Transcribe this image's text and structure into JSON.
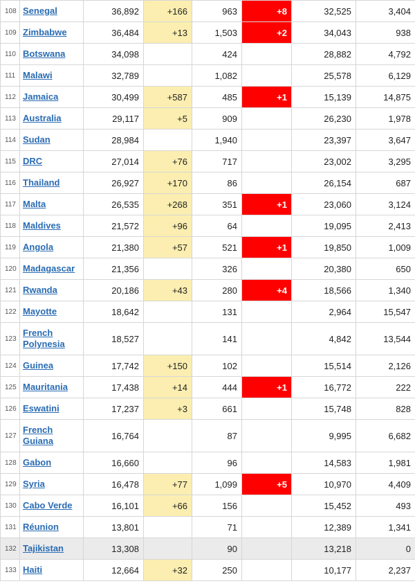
{
  "rows": [
    {
      "rank": "108",
      "country": "Senegal",
      "cases": "36,892",
      "new_cases": "+166",
      "deaths": "963",
      "new_deaths": "+8",
      "recovered": "32,525",
      "active": "3,404"
    },
    {
      "rank": "109",
      "country": "Zimbabwe",
      "cases": "36,484",
      "new_cases": "+13",
      "deaths": "1,503",
      "new_deaths": "+2",
      "recovered": "34,043",
      "active": "938"
    },
    {
      "rank": "110",
      "country": "Botswana",
      "cases": "34,098",
      "new_cases": "",
      "deaths": "424",
      "new_deaths": "",
      "recovered": "28,882",
      "active": "4,792"
    },
    {
      "rank": "111",
      "country": "Malawi",
      "cases": "32,789",
      "new_cases": "",
      "deaths": "1,082",
      "new_deaths": "",
      "recovered": "25,578",
      "active": "6,129"
    },
    {
      "rank": "112",
      "country": "Jamaica",
      "cases": "30,499",
      "new_cases": "+587",
      "deaths": "485",
      "new_deaths": "+1",
      "recovered": "15,139",
      "active": "14,875"
    },
    {
      "rank": "113",
      "country": "Australia",
      "cases": "29,117",
      "new_cases": "+5",
      "deaths": "909",
      "new_deaths": "",
      "recovered": "26,230",
      "active": "1,978"
    },
    {
      "rank": "114",
      "country": "Sudan",
      "cases": "28,984",
      "new_cases": "",
      "deaths": "1,940",
      "new_deaths": "",
      "recovered": "23,397",
      "active": "3,647"
    },
    {
      "rank": "115",
      "country": "DRC",
      "cases": "27,014",
      "new_cases": "+76",
      "deaths": "717",
      "new_deaths": "",
      "recovered": "23,002",
      "active": "3,295"
    },
    {
      "rank": "116",
      "country": "Thailand",
      "cases": "26,927",
      "new_cases": "+170",
      "deaths": "86",
      "new_deaths": "",
      "recovered": "26,154",
      "active": "687"
    },
    {
      "rank": "117",
      "country": "Malta",
      "cases": "26,535",
      "new_cases": "+268",
      "deaths": "351",
      "new_deaths": "+1",
      "recovered": "23,060",
      "active": "3,124"
    },
    {
      "rank": "118",
      "country": "Maldives",
      "cases": "21,572",
      "new_cases": "+96",
      "deaths": "64",
      "new_deaths": "",
      "recovered": "19,095",
      "active": "2,413"
    },
    {
      "rank": "119",
      "country": "Angola",
      "cases": "21,380",
      "new_cases": "+57",
      "deaths": "521",
      "new_deaths": "+1",
      "recovered": "19,850",
      "active": "1,009"
    },
    {
      "rank": "120",
      "country": "Madagascar",
      "cases": "21,356",
      "new_cases": "",
      "deaths": "326",
      "new_deaths": "",
      "recovered": "20,380",
      "active": "650"
    },
    {
      "rank": "121",
      "country": "Rwanda",
      "cases": "20,186",
      "new_cases": "+43",
      "deaths": "280",
      "new_deaths": "+4",
      "recovered": "18,566",
      "active": "1,340"
    },
    {
      "rank": "122",
      "country": "Mayotte",
      "cases": "18,642",
      "new_cases": "",
      "deaths": "131",
      "new_deaths": "",
      "recovered": "2,964",
      "active": "15,547"
    },
    {
      "rank": "123",
      "country": "French Polynesia",
      "cases": "18,527",
      "new_cases": "",
      "deaths": "141",
      "new_deaths": "",
      "recovered": "4,842",
      "active": "13,544"
    },
    {
      "rank": "124",
      "country": "Guinea",
      "cases": "17,742",
      "new_cases": "+150",
      "deaths": "102",
      "new_deaths": "",
      "recovered": "15,514",
      "active": "2,126"
    },
    {
      "rank": "125",
      "country": "Mauritania",
      "cases": "17,438",
      "new_cases": "+14",
      "deaths": "444",
      "new_deaths": "+1",
      "recovered": "16,772",
      "active": "222"
    },
    {
      "rank": "126",
      "country": "Eswatini",
      "cases": "17,237",
      "new_cases": "+3",
      "deaths": "661",
      "new_deaths": "",
      "recovered": "15,748",
      "active": "828"
    },
    {
      "rank": "127",
      "country": "French Guiana",
      "cases": "16,764",
      "new_cases": "",
      "deaths": "87",
      "new_deaths": "",
      "recovered": "9,995",
      "active": "6,682"
    },
    {
      "rank": "128",
      "country": "Gabon",
      "cases": "16,660",
      "new_cases": "",
      "deaths": "96",
      "new_deaths": "",
      "recovered": "14,583",
      "active": "1,981"
    },
    {
      "rank": "129",
      "country": "Syria",
      "cases": "16,478",
      "new_cases": "+77",
      "deaths": "1,099",
      "new_deaths": "+5",
      "recovered": "10,970",
      "active": "4,409"
    },
    {
      "rank": "130",
      "country": "Cabo Verde",
      "cases": "16,101",
      "new_cases": "+66",
      "deaths": "156",
      "new_deaths": "",
      "recovered": "15,452",
      "active": "493"
    },
    {
      "rank": "131",
      "country": "Réunion",
      "cases": "13,801",
      "new_cases": "",
      "deaths": "71",
      "new_deaths": "",
      "recovered": "12,389",
      "active": "1,341"
    },
    {
      "rank": "132",
      "country": "Tajikistan",
      "cases": "13,308",
      "new_cases": "",
      "deaths": "90",
      "new_deaths": "",
      "recovered": "13,218",
      "active": "0"
    },
    {
      "rank": "133",
      "country": "Haiti",
      "cases": "12,664",
      "new_cases": "+32",
      "deaths": "250",
      "new_deaths": "",
      "recovered": "10,177",
      "active": "2,237"
    }
  ],
  "colors": {
    "new_cases_highlight": "#fbeeb0",
    "new_deaths_highlight": "#ff0000",
    "link": "#2a6cb3",
    "completed_row": "#ebebeb"
  }
}
